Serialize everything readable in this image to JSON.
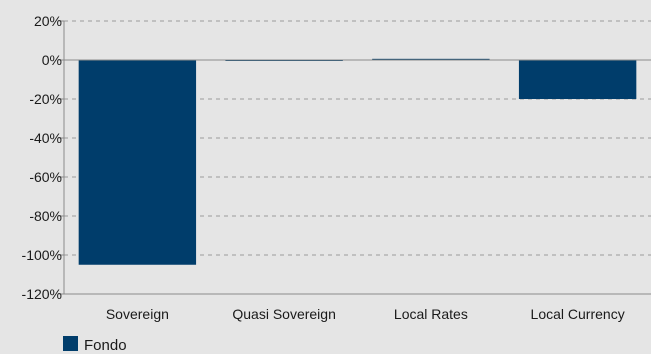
{
  "chart_data": {
    "type": "bar",
    "title": "",
    "xlabel": "",
    "ylabel": "",
    "categories": [
      "Sovereign",
      "Quasi Sovereign",
      "Local Rates",
      "Local Currency"
    ],
    "series": [
      {
        "name": "Fondo",
        "values": [
          -105,
          0,
          0.6,
          -20
        ],
        "color": "#003d6b"
      }
    ],
    "ylim": [
      -120,
      20
    ],
    "yticks": [
      20,
      0,
      -20,
      -40,
      -60,
      -80,
      -100,
      -120
    ],
    "ytick_labels": [
      "20%",
      "0%",
      "-20%",
      "-40%",
      "-60%",
      "-80%",
      "-100%",
      "-120%"
    ],
    "grid": true,
    "legend_position": "bottom-left",
    "colors": {
      "background": "#e5e5e5",
      "axis": "#8a8a8a",
      "grid": "#9a9a9a",
      "bar": "#003d6b"
    }
  }
}
